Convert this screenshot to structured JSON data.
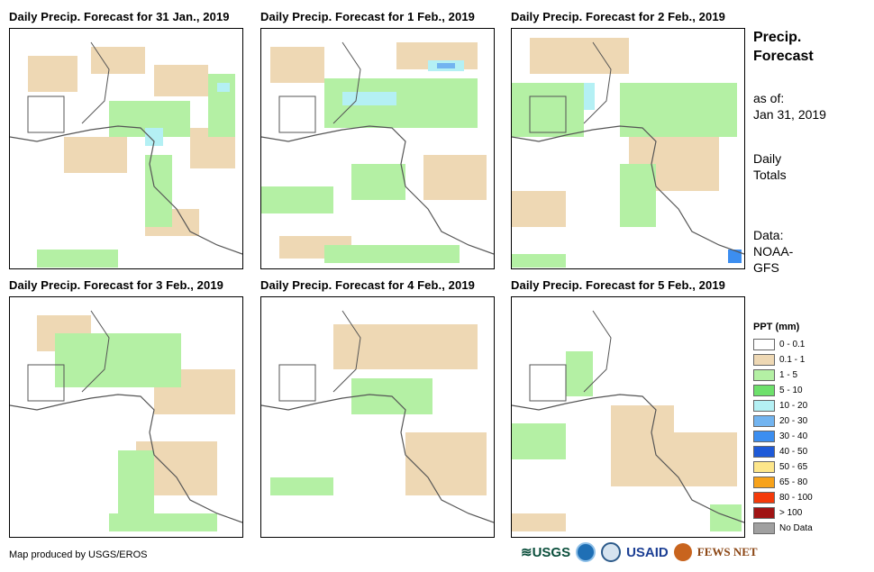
{
  "panels": [
    {
      "title": "Daily Precip. Forecast for 31 Jan., 2019"
    },
    {
      "title": "Daily Precip. Forecast for 1 Feb., 2019"
    },
    {
      "title": "Daily Precip. Forecast for 2 Feb., 2019"
    },
    {
      "title": "Daily Precip. Forecast for 3 Feb., 2019"
    },
    {
      "title": "Daily Precip. Forecast for 4 Feb., 2019"
    },
    {
      "title": "Daily Precip. Forecast for 5 Feb., 2019"
    }
  ],
  "sidebar": {
    "title_line1": "Precip.",
    "title_line2": "Forecast",
    "asof_line1": "as of:",
    "asof_line2": "Jan 31, 2019",
    "daily_line1": "Daily",
    "daily_line2": "Totals",
    "data_line1": "Data:",
    "data_line2": "NOAA-",
    "data_line3": "GFS"
  },
  "legend": {
    "title": "PPT (mm)",
    "items": [
      {
        "label": "0 - 0.1",
        "color": "#ffffff"
      },
      {
        "label": "0.1 - 1",
        "color": "#eed8b4"
      },
      {
        "label": "1 - 5",
        "color": "#b4f0a4"
      },
      {
        "label": "5 - 10",
        "color": "#6de06b"
      },
      {
        "label": "10 - 20",
        "color": "#b4f0f4"
      },
      {
        "label": "20 - 30",
        "color": "#72b4f0"
      },
      {
        "label": "30 - 40",
        "color": "#3c8ef0"
      },
      {
        "label": "40 - 50",
        "color": "#1e5ad8"
      },
      {
        "label": "50 - 65",
        "color": "#fde68a"
      },
      {
        "label": "65 - 80",
        "color": "#f7a21a"
      },
      {
        "label": "80 - 100",
        "color": "#f43a0a"
      },
      {
        "label": "> 100",
        "color": "#a01414"
      },
      {
        "label": "No Data",
        "color": "#a0a0a0"
      }
    ]
  },
  "footer": {
    "credit": "Map produced by USGS/EROS"
  },
  "logos": {
    "usgs": "≋USGS",
    "usaid": "USAID",
    "fewsnet": "FEWS NET"
  }
}
